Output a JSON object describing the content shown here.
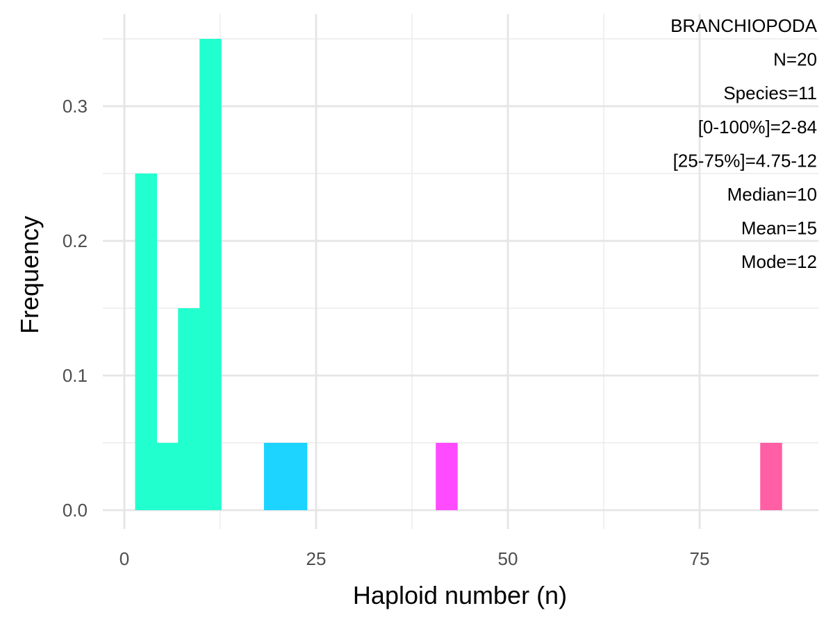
{
  "chart_data": {
    "type": "bar",
    "title": "",
    "xlabel": "Haploid number (n)",
    "ylabel": "Frequency",
    "xlim": [
      -2.5,
      88.5
    ],
    "ylim": [
      -0.014,
      0.35
    ],
    "x_ticks": [
      0,
      25,
      50,
      75
    ],
    "y_ticks": [
      0.0,
      0.1,
      0.2,
      0.3
    ],
    "y_tick_labels": [
      "0.0",
      "0.1",
      "0.2",
      "0.3"
    ],
    "grid": true,
    "bin_width": 2.8,
    "bars": [
      {
        "x_start": 1.4,
        "x_end": 4.2,
        "value": 0.25,
        "color": "#22FFCF"
      },
      {
        "x_start": 4.2,
        "x_end": 7.0,
        "value": 0.05,
        "color": "#22FFCF"
      },
      {
        "x_start": 7.0,
        "x_end": 9.8,
        "value": 0.15,
        "color": "#22FFCF"
      },
      {
        "x_start": 9.8,
        "x_end": 12.6,
        "value": 0.35,
        "color": "#22FFCF"
      },
      {
        "x_start": 18.2,
        "x_end": 21.0,
        "value": 0.05,
        "color": "#1DD3FF"
      },
      {
        "x_start": 21.0,
        "x_end": 23.8,
        "value": 0.05,
        "color": "#1DD3FF"
      },
      {
        "x_start": 40.6,
        "x_end": 43.4,
        "value": 0.05,
        "color": "#FF4BFF"
      },
      {
        "x_start": 82.9,
        "x_end": 85.7,
        "value": 0.05,
        "color": "#FF5FA5"
      }
    ],
    "annotations": [
      "BRANCHIOPODA",
      "N=20",
      "Species=11",
      "[0-100%]=2-84",
      "[25-75%]=4.75-12",
      "Median=10",
      "Mean=15",
      "Mode=12"
    ]
  }
}
